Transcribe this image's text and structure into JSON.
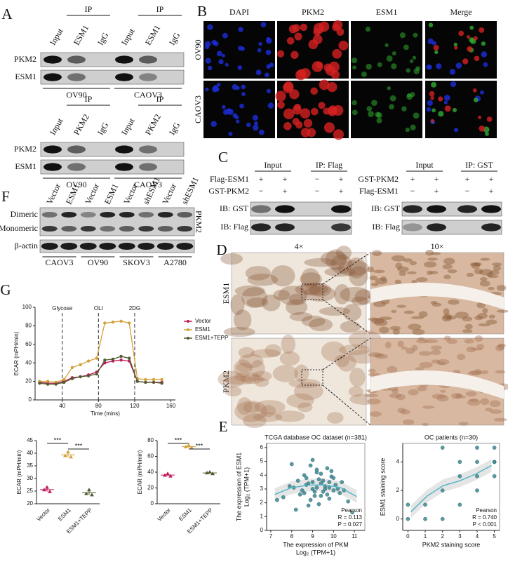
{
  "panel_labels": [
    "A",
    "B",
    "C",
    "D",
    "E",
    "F",
    "G"
  ],
  "panel_a": {
    "blots": [
      {
        "ip": "IP",
        "lanes": [
          "Input",
          "ESM1",
          "IgG",
          "Input",
          "ESM1",
          "IgG"
        ],
        "rows": [
          "PKM2",
          "ESM1"
        ],
        "groups": [
          "OV90",
          "CAOV3"
        ]
      },
      {
        "ip": "IP",
        "lanes": [
          "Input",
          "PKM2",
          "IgG",
          "Input",
          "PKM2",
          "IgG"
        ],
        "rows": [
          "PKM2",
          "ESM1"
        ],
        "groups": [
          "OV90",
          "CAOV3"
        ]
      }
    ]
  },
  "panel_b": {
    "columns": [
      "DAPI",
      "PKM2",
      "ESM1",
      "Merge"
    ],
    "rows": [
      "OV90",
      "CAOV3"
    ]
  },
  "panel_c": {
    "blots": [
      {
        "headers": [
          "Input",
          "IP: Flag"
        ],
        "conditions": [
          {
            "label": "Flag-ESM1",
            "signs": [
              "+",
              "+",
              "−",
              "+"
            ]
          },
          {
            "label": "GST-PKM2",
            "signs": [
              "−",
              "+",
              "−",
              "+"
            ]
          }
        ],
        "rows": [
          "IB: GST",
          "IB: Flag"
        ]
      },
      {
        "headers": [
          "Input",
          "IP: GST"
        ],
        "conditions": [
          {
            "label": "GST-PKM2",
            "signs": [
              "+",
              "+",
              "+",
              "+"
            ]
          },
          {
            "label": "Flag-ESM1",
            "signs": [
              "−",
              "+",
              "−",
              "+"
            ]
          }
        ],
        "rows": [
          "IB: GST",
          "IB: Flag"
        ]
      }
    ]
  },
  "panel_f": {
    "lanes": [
      "Vector",
      "ESM1",
      "Vector",
      "ESM1",
      "Vector",
      "shESM1",
      "Vector",
      "shESM1"
    ],
    "rows": [
      "Dimeric",
      "Monomeric"
    ],
    "side": "PKM2",
    "control": "β-actin",
    "groups": [
      "CAOV3",
      "OV90",
      "SKOV3",
      "A2780"
    ]
  },
  "panel_d": {
    "columns": [
      "4×",
      "10×"
    ],
    "rows": [
      "ESM1",
      "PKM2"
    ]
  },
  "panel_g": {
    "line": {
      "type": "line",
      "xlabel": "Time (mins)",
      "ylabel": "ECAR (mPH/min)",
      "x": [
        15,
        24,
        33,
        42,
        51,
        60,
        69,
        78,
        87,
        96,
        105,
        114,
        123,
        132,
        141,
        150
      ],
      "series": [
        {
          "name": "Vector",
          "color": "#c2185b",
          "values": [
            19,
            18,
            18,
            20,
            24,
            25,
            27,
            30,
            40,
            42,
            43,
            42,
            20,
            19,
            19,
            19
          ]
        },
        {
          "name": "ESM1",
          "color": "#d4a13a",
          "values": [
            20,
            20,
            19,
            22,
            35,
            38,
            42,
            45,
            83,
            84,
            85,
            83,
            23,
            22,
            22,
            22
          ]
        },
        {
          "name": "ESM1+TEPP",
          "color": "#4f5d2f",
          "values": [
            18,
            17,
            17,
            19,
            23,
            25,
            26,
            28,
            43,
            44,
            47,
            45,
            20,
            19,
            19,
            18
          ]
        }
      ],
      "xlim": [
        10,
        165
      ],
      "xticks": [
        40,
        80,
        120,
        160
      ],
      "ylim": [
        0,
        100
      ],
      "yticks": [
        0,
        20,
        40,
        60,
        80,
        100
      ],
      "annotations": [
        "Glycose",
        "OLI",
        "2DG"
      ],
      "annotation_x": [
        40,
        80,
        120
      ]
    },
    "dots": [
      {
        "type": "strip",
        "ylabel": "ECAR (mPH/min)",
        "categories": [
          "Vector",
          "ESM1",
          "ESM1+TEPP"
        ],
        "colors": [
          "#c2185b",
          "#d4a13a",
          "#4f5d2f"
        ],
        "points": [
          [
            25.5,
            26.5,
            24.8
          ],
          [
            39,
            40.5,
            38.5
          ],
          [
            24,
            25.5,
            23.5
          ]
        ],
        "ylim": [
          20,
          45
        ],
        "yticks": [
          20,
          25,
          30,
          35,
          40,
          45
        ],
        "significance": [
          "***",
          "***"
        ]
      },
      {
        "type": "strip",
        "ylabel": "ECAR (mPH/min)",
        "categories": [
          "Vector",
          "ESM1",
          "ESM1+TEPP"
        ],
        "colors": [
          "#c2185b",
          "#d4a13a",
          "#4f5d2f"
        ],
        "points": [
          [
            36,
            38,
            35
          ],
          [
            72,
            74,
            71
          ],
          [
            39,
            40,
            38
          ]
        ],
        "ylim": [
          0,
          80
        ],
        "yticks": [
          0,
          20,
          40,
          60,
          80
        ],
        "significance": [
          "***",
          "***"
        ]
      }
    ]
  },
  "panel_e": {
    "charts": [
      {
        "type": "scatter",
        "title": "TCGA database OC dataset (n=381)",
        "color": "#3a8a96",
        "xlabel": [
          "The expression of PKM",
          "Log₂ (TPM+1)"
        ],
        "ylabel": [
          "The expression of ESM1",
          "Log₂ (TPM+1)"
        ],
        "x": [
          8.1,
          8.4,
          8.7,
          9.0,
          9.2,
          9.5,
          9.8,
          10.1,
          8.9,
          9.3,
          9.6,
          8.6,
          9.1,
          9.4,
          9.7,
          10.0,
          8.3,
          8.8,
          9.2,
          9.9,
          10.3,
          7.6,
          7.9,
          8.5,
          9.0,
          9.4,
          9.8,
          10.4,
          10.7,
          8.2,
          8.7,
          9.1,
          9.5,
          9.9,
          10.2,
          8.9,
          9.3,
          9.6,
          9.0,
          9.7,
          8.6,
          9.2,
          10.0,
          10.5,
          7.3,
          8.0,
          8.8,
          9.4,
          9.8,
          10.9
        ],
        "y": [
          3.1,
          2.6,
          3.8,
          3.0,
          4.2,
          2.8,
          3.5,
          3.3,
          2.2,
          3.7,
          3.0,
          4.0,
          2.5,
          3.4,
          4.5,
          2.9,
          3.6,
          1.8,
          3.1,
          3.9,
          2.7,
          2.4,
          3.2,
          2.9,
          5.1,
          4.1,
          2.3,
          3.5,
          2.1,
          1.5,
          3.3,
          2.8,
          3.6,
          4.3,
          3.0,
          4.7,
          1.9,
          3.2,
          3.5,
          2.6,
          2.7,
          4.4,
          3.8,
          2.9,
          2.2,
          4.8,
          3.4,
          2.5,
          3.1,
          1.3
        ],
        "xlim": [
          6.8,
          11.5
        ],
        "xticks": [
          7,
          8,
          9,
          10,
          11
        ],
        "ylim": [
          0,
          6.3
        ],
        "yticks": [
          0,
          1,
          2,
          3,
          4,
          5,
          6
        ],
        "stats": [
          "Pearson",
          "R = 0.113",
          "P = 0.027"
        ]
      },
      {
        "type": "scatter",
        "title": "OC patients (n=30)",
        "color": "#3a8a96",
        "xlabel": [
          "PKM2 staining score"
        ],
        "ylabel": [
          "ESM1 staining score"
        ],
        "x": [
          0,
          0,
          1,
          2,
          2,
          3,
          3,
          3,
          4,
          4,
          4,
          4,
          5,
          5,
          5,
          5,
          2,
          1
        ],
        "y": [
          0,
          1,
          1,
          0,
          2,
          1,
          3,
          4,
          3,
          4,
          2,
          5,
          3,
          4,
          5,
          4,
          5,
          0
        ],
        "xlim": [
          -0.3,
          5.3
        ],
        "xticks": [
          0,
          1,
          2,
          3,
          4,
          5
        ],
        "ylim": [
          -0.8,
          5.3
        ],
        "yticks": [
          0,
          2,
          4
        ],
        "stats": [
          "Pearson",
          "R = 0.740",
          "P < 0.001"
        ]
      }
    ]
  }
}
